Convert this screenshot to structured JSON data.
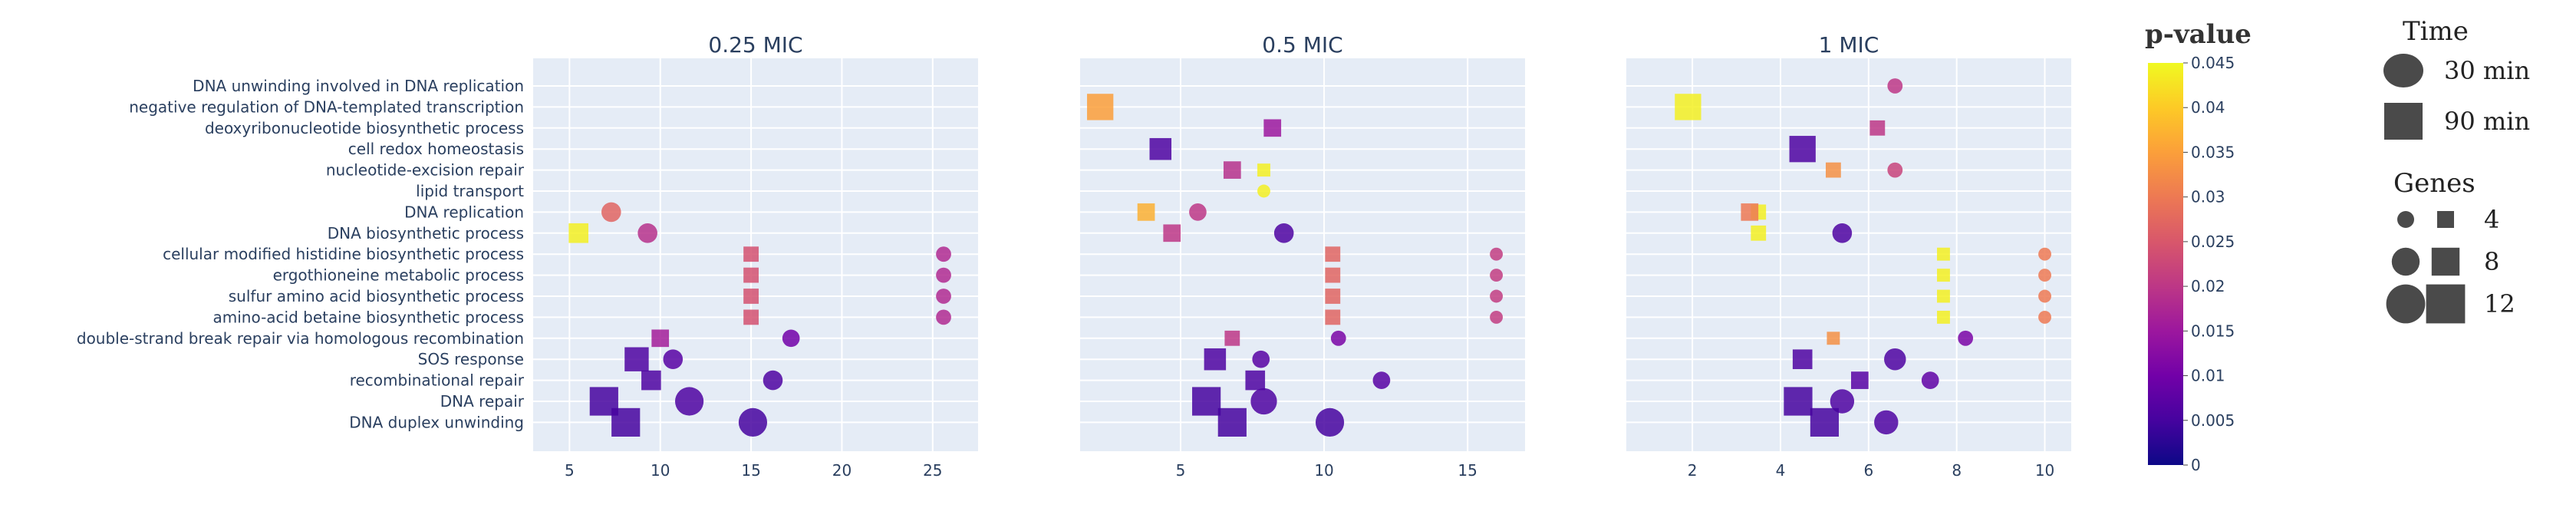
{
  "chart_data": {
    "type": "scatter",
    "categories": [
      "DNA unwinding involved in DNA replication",
      "negative regulation of DNA-templated transcription",
      "deoxyribonucleotide biosynthetic process",
      "cell redox homeostasis",
      "nucleotide-excision repair",
      "lipid transport",
      "DNA replication",
      "DNA biosynthetic process",
      "cellular modified histidine biosynthetic process",
      "ergothioneine metabolic process",
      "sulfur amino acid biosynthetic process",
      "amino-acid betaine biosynthetic process",
      "double-strand break repair via homologous recombination",
      "SOS response",
      "recombinational repair",
      "DNA repair",
      "DNA duplex unwinding"
    ],
    "panels": [
      {
        "title": "0.25 MIC",
        "xlim": [
          3.0,
          27.5
        ],
        "xticks": [
          5,
          10,
          15,
          20,
          25
        ],
        "points": [
          {
            "term": "DNA replication",
            "x": 7.3,
            "p": 0.027,
            "time": "30 min",
            "genes": 8
          },
          {
            "term": "DNA biosynthetic process",
            "x": 5.5,
            "p": 0.044,
            "time": "90 min",
            "genes": 8
          },
          {
            "term": "DNA biosynthetic process",
            "x": 9.3,
            "p": 0.019,
            "time": "30 min",
            "genes": 8
          },
          {
            "term": "cellular modified histidine biosynthetic process",
            "x": 15.0,
            "p": 0.024,
            "time": "90 min",
            "genes": 6
          },
          {
            "term": "cellular modified histidine biosynthetic process",
            "x": 25.6,
            "p": 0.018,
            "time": "30 min",
            "genes": 6
          },
          {
            "term": "ergothioneine metabolic process",
            "x": 15.0,
            "p": 0.024,
            "time": "90 min",
            "genes": 6
          },
          {
            "term": "ergothioneine metabolic process",
            "x": 25.6,
            "p": 0.018,
            "time": "30 min",
            "genes": 6
          },
          {
            "term": "sulfur amino acid biosynthetic process",
            "x": 15.0,
            "p": 0.024,
            "time": "90 min",
            "genes": 6
          },
          {
            "term": "sulfur amino acid biosynthetic process",
            "x": 25.6,
            "p": 0.018,
            "time": "30 min",
            "genes": 6
          },
          {
            "term": "amino-acid betaine biosynthetic process",
            "x": 15.0,
            "p": 0.024,
            "time": "90 min",
            "genes": 6
          },
          {
            "term": "amino-acid betaine biosynthetic process",
            "x": 25.6,
            "p": 0.018,
            "time": "30 min",
            "genes": 6
          },
          {
            "term": "double-strand break repair via homologous recombination",
            "x": 10.0,
            "p": 0.016,
            "time": "90 min",
            "genes": 7
          },
          {
            "term": "double-strand break repair via homologous recombination",
            "x": 17.2,
            "p": 0.01,
            "time": "30 min",
            "genes": 7
          },
          {
            "term": "SOS response",
            "x": 8.7,
            "p": 0.006,
            "time": "90 min",
            "genes": 10
          },
          {
            "term": "SOS response",
            "x": 10.7,
            "p": 0.007,
            "time": "30 min",
            "genes": 8
          },
          {
            "term": "recombinational repair",
            "x": 9.5,
            "p": 0.006,
            "time": "90 min",
            "genes": 8
          },
          {
            "term": "recombinational repair",
            "x": 16.2,
            "p": 0.006,
            "time": "30 min",
            "genes": 8
          },
          {
            "term": "DNA repair",
            "x": 6.9,
            "p": 0.005,
            "time": "90 min",
            "genes": 12
          },
          {
            "term": "DNA repair",
            "x": 11.6,
            "p": 0.006,
            "time": "30 min",
            "genes": 12
          },
          {
            "term": "DNA duplex unwinding",
            "x": 8.1,
            "p": 0.005,
            "time": "90 min",
            "genes": 12
          },
          {
            "term": "DNA duplex unwinding",
            "x": 15.1,
            "p": 0.005,
            "time": "30 min",
            "genes": 12
          }
        ]
      },
      {
        "title": "0.5 MIC",
        "xlim": [
          1.5,
          17.0
        ],
        "xticks": [
          5,
          10,
          15
        ],
        "points": [
          {
            "term": "negative regulation of DNA-templated transcription",
            "x": 2.2,
            "p": 0.035,
            "time": "90 min",
            "genes": 11
          },
          {
            "term": "deoxyribonucleotide biosynthetic process",
            "x": 8.2,
            "p": 0.015,
            "time": "90 min",
            "genes": 7
          },
          {
            "term": "cell redox homeostasis",
            "x": 4.3,
            "p": 0.006,
            "time": "90 min",
            "genes": 9
          },
          {
            "term": "nucleotide-excision repair",
            "x": 6.8,
            "p": 0.019,
            "time": "90 min",
            "genes": 7
          },
          {
            "term": "nucleotide-excision repair",
            "x": 7.9,
            "p": 0.044,
            "time": "90 min",
            "genes": 5
          },
          {
            "term": "lipid transport",
            "x": 7.9,
            "p": 0.044,
            "time": "30 min",
            "genes": 5
          },
          {
            "term": "DNA replication",
            "x": 3.8,
            "p": 0.037,
            "time": "90 min",
            "genes": 7
          },
          {
            "term": "DNA replication",
            "x": 5.6,
            "p": 0.02,
            "time": "30 min",
            "genes": 7
          },
          {
            "term": "DNA biosynthetic process",
            "x": 4.7,
            "p": 0.02,
            "time": "90 min",
            "genes": 7
          },
          {
            "term": "DNA biosynthetic process",
            "x": 8.6,
            "p": 0.006,
            "time": "30 min",
            "genes": 8
          },
          {
            "term": "cellular modified histidine biosynthetic process",
            "x": 10.3,
            "p": 0.027,
            "time": "90 min",
            "genes": 6
          },
          {
            "term": "cellular modified histidine biosynthetic process",
            "x": 16.0,
            "p": 0.021,
            "time": "30 min",
            "genes": 5
          },
          {
            "term": "ergothioneine metabolic process",
            "x": 10.3,
            "p": 0.027,
            "time": "90 min",
            "genes": 6
          },
          {
            "term": "ergothioneine metabolic process",
            "x": 16.0,
            "p": 0.021,
            "time": "30 min",
            "genes": 5
          },
          {
            "term": "sulfur amino acid biosynthetic process",
            "x": 10.3,
            "p": 0.027,
            "time": "90 min",
            "genes": 6
          },
          {
            "term": "sulfur amino acid biosynthetic process",
            "x": 16.0,
            "p": 0.021,
            "time": "30 min",
            "genes": 5
          },
          {
            "term": "amino-acid betaine biosynthetic process",
            "x": 10.3,
            "p": 0.027,
            "time": "90 min",
            "genes": 6
          },
          {
            "term": "amino-acid betaine biosynthetic process",
            "x": 16.0,
            "p": 0.021,
            "time": "30 min",
            "genes": 5
          },
          {
            "term": "double-strand break repair via homologous recombination",
            "x": 6.8,
            "p": 0.02,
            "time": "90 min",
            "genes": 6
          },
          {
            "term": "double-strand break repair via homologous recombination",
            "x": 10.5,
            "p": 0.011,
            "time": "30 min",
            "genes": 6
          },
          {
            "term": "SOS response",
            "x": 6.2,
            "p": 0.006,
            "time": "90 min",
            "genes": 9
          },
          {
            "term": "SOS response",
            "x": 7.8,
            "p": 0.007,
            "time": "30 min",
            "genes": 7
          },
          {
            "term": "recombinational repair",
            "x": 7.6,
            "p": 0.006,
            "time": "90 min",
            "genes": 8
          },
          {
            "term": "recombinational repair",
            "x": 12.0,
            "p": 0.007,
            "time": "30 min",
            "genes": 7
          },
          {
            "term": "DNA repair",
            "x": 5.9,
            "p": 0.005,
            "time": "90 min",
            "genes": 12
          },
          {
            "term": "DNA repair",
            "x": 7.9,
            "p": 0.006,
            "time": "30 min",
            "genes": 11
          },
          {
            "term": "DNA duplex unwinding",
            "x": 6.8,
            "p": 0.005,
            "time": "90 min",
            "genes": 12
          },
          {
            "term": "DNA duplex unwinding",
            "x": 10.2,
            "p": 0.005,
            "time": "30 min",
            "genes": 12
          }
        ]
      },
      {
        "title": "1 MIC",
        "xlim": [
          0.5,
          10.6
        ],
        "xticks": [
          2,
          4,
          6,
          8,
          10
        ],
        "points": [
          {
            "term": "DNA unwinding involved in DNA replication",
            "x": 6.6,
            "p": 0.02,
            "time": "30 min",
            "genes": 6
          },
          {
            "term": "negative regulation of DNA-templated transcription",
            "x": 1.9,
            "p": 0.044,
            "time": "90 min",
            "genes": 11
          },
          {
            "term": "deoxyribonucleotide biosynthetic process",
            "x": 6.2,
            "p": 0.02,
            "time": "90 min",
            "genes": 6
          },
          {
            "term": "cell redox homeostasis",
            "x": 4.5,
            "p": 0.006,
            "time": "90 min",
            "genes": 11
          },
          {
            "term": "nucleotide-excision repair",
            "x": 5.2,
            "p": 0.033,
            "time": "90 min",
            "genes": 6
          },
          {
            "term": "nucleotide-excision repair",
            "x": 6.6,
            "p": 0.022,
            "time": "30 min",
            "genes": 6
          },
          {
            "term": "DNA replication",
            "x": 3.5,
            "p": 0.044,
            "time": "90 min",
            "genes": 6
          },
          {
            "term": "DNA replication",
            "x": 3.3,
            "p": 0.03,
            "time": "90 min",
            "genes": 7
          },
          {
            "term": "DNA biosynthetic process",
            "x": 3.5,
            "p": 0.044,
            "time": "90 min",
            "genes": 6
          },
          {
            "term": "DNA biosynthetic process",
            "x": 5.4,
            "p": 0.006,
            "time": "30 min",
            "genes": 8
          },
          {
            "term": "cellular modified histidine biosynthetic process",
            "x": 7.7,
            "p": 0.044,
            "time": "90 min",
            "genes": 5
          },
          {
            "term": "cellular modified histidine biosynthetic process",
            "x": 10.0,
            "p": 0.03,
            "time": "30 min",
            "genes": 5
          },
          {
            "term": "ergothioneine metabolic process",
            "x": 7.7,
            "p": 0.044,
            "time": "90 min",
            "genes": 5
          },
          {
            "term": "ergothioneine metabolic process",
            "x": 10.0,
            "p": 0.03,
            "time": "30 min",
            "genes": 5
          },
          {
            "term": "sulfur amino acid biosynthetic process",
            "x": 7.7,
            "p": 0.044,
            "time": "90 min",
            "genes": 5
          },
          {
            "term": "sulfur amino acid biosynthetic process",
            "x": 10.0,
            "p": 0.03,
            "time": "30 min",
            "genes": 5
          },
          {
            "term": "amino-acid betaine biosynthetic process",
            "x": 7.7,
            "p": 0.044,
            "time": "90 min",
            "genes": 5
          },
          {
            "term": "amino-acid betaine biosynthetic process",
            "x": 10.0,
            "p": 0.03,
            "time": "30 min",
            "genes": 5
          },
          {
            "term": "double-strand break repair via homologous recombination",
            "x": 5.2,
            "p": 0.033,
            "time": "90 min",
            "genes": 5
          },
          {
            "term": "double-strand break repair via homologous recombination",
            "x": 8.2,
            "p": 0.011,
            "time": "30 min",
            "genes": 6
          },
          {
            "term": "SOS response",
            "x": 4.5,
            "p": 0.006,
            "time": "90 min",
            "genes": 8
          },
          {
            "term": "SOS response",
            "x": 6.6,
            "p": 0.006,
            "time": "30 min",
            "genes": 9
          },
          {
            "term": "recombinational repair",
            "x": 5.8,
            "p": 0.007,
            "time": "90 min",
            "genes": 7
          },
          {
            "term": "recombinational repair",
            "x": 7.4,
            "p": 0.008,
            "time": "30 min",
            "genes": 7
          },
          {
            "term": "DNA repair",
            "x": 4.4,
            "p": 0.005,
            "time": "90 min",
            "genes": 12
          },
          {
            "term": "DNA repair",
            "x": 5.4,
            "p": 0.006,
            "time": "30 min",
            "genes": 10
          },
          {
            "term": "DNA duplex unwinding",
            "x": 5.0,
            "p": 0.005,
            "time": "90 min",
            "genes": 12
          },
          {
            "term": "DNA duplex unwinding",
            "x": 6.4,
            "p": 0.006,
            "time": "30 min",
            "genes": 10
          }
        ]
      }
    ],
    "colorbar": {
      "title": "p-value",
      "range": [
        0,
        0.045
      ],
      "ticks": [
        "0",
        "0.005",
        "0.01",
        "0.015",
        "0.02",
        "0.025",
        "0.03",
        "0.035",
        "0.04",
        "0.045"
      ],
      "colorscale": [
        "#0d0887",
        "#46039f",
        "#7201a8",
        "#9c179e",
        "#bd3786",
        "#d8576b",
        "#ed7953",
        "#fb9f3a",
        "#fdca26",
        "#f0f921"
      ]
    },
    "legend": {
      "time_title": "Time",
      "time_entries": [
        {
          "label": "30 min",
          "shape": "circle"
        },
        {
          "label": "90 min",
          "shape": "square"
        }
      ],
      "genes_title": "Genes",
      "genes_entries": [
        {
          "label": "4",
          "genes": 4
        },
        {
          "label": "8",
          "genes": 8
        },
        {
          "label": "12",
          "genes": 12
        }
      ]
    }
  }
}
